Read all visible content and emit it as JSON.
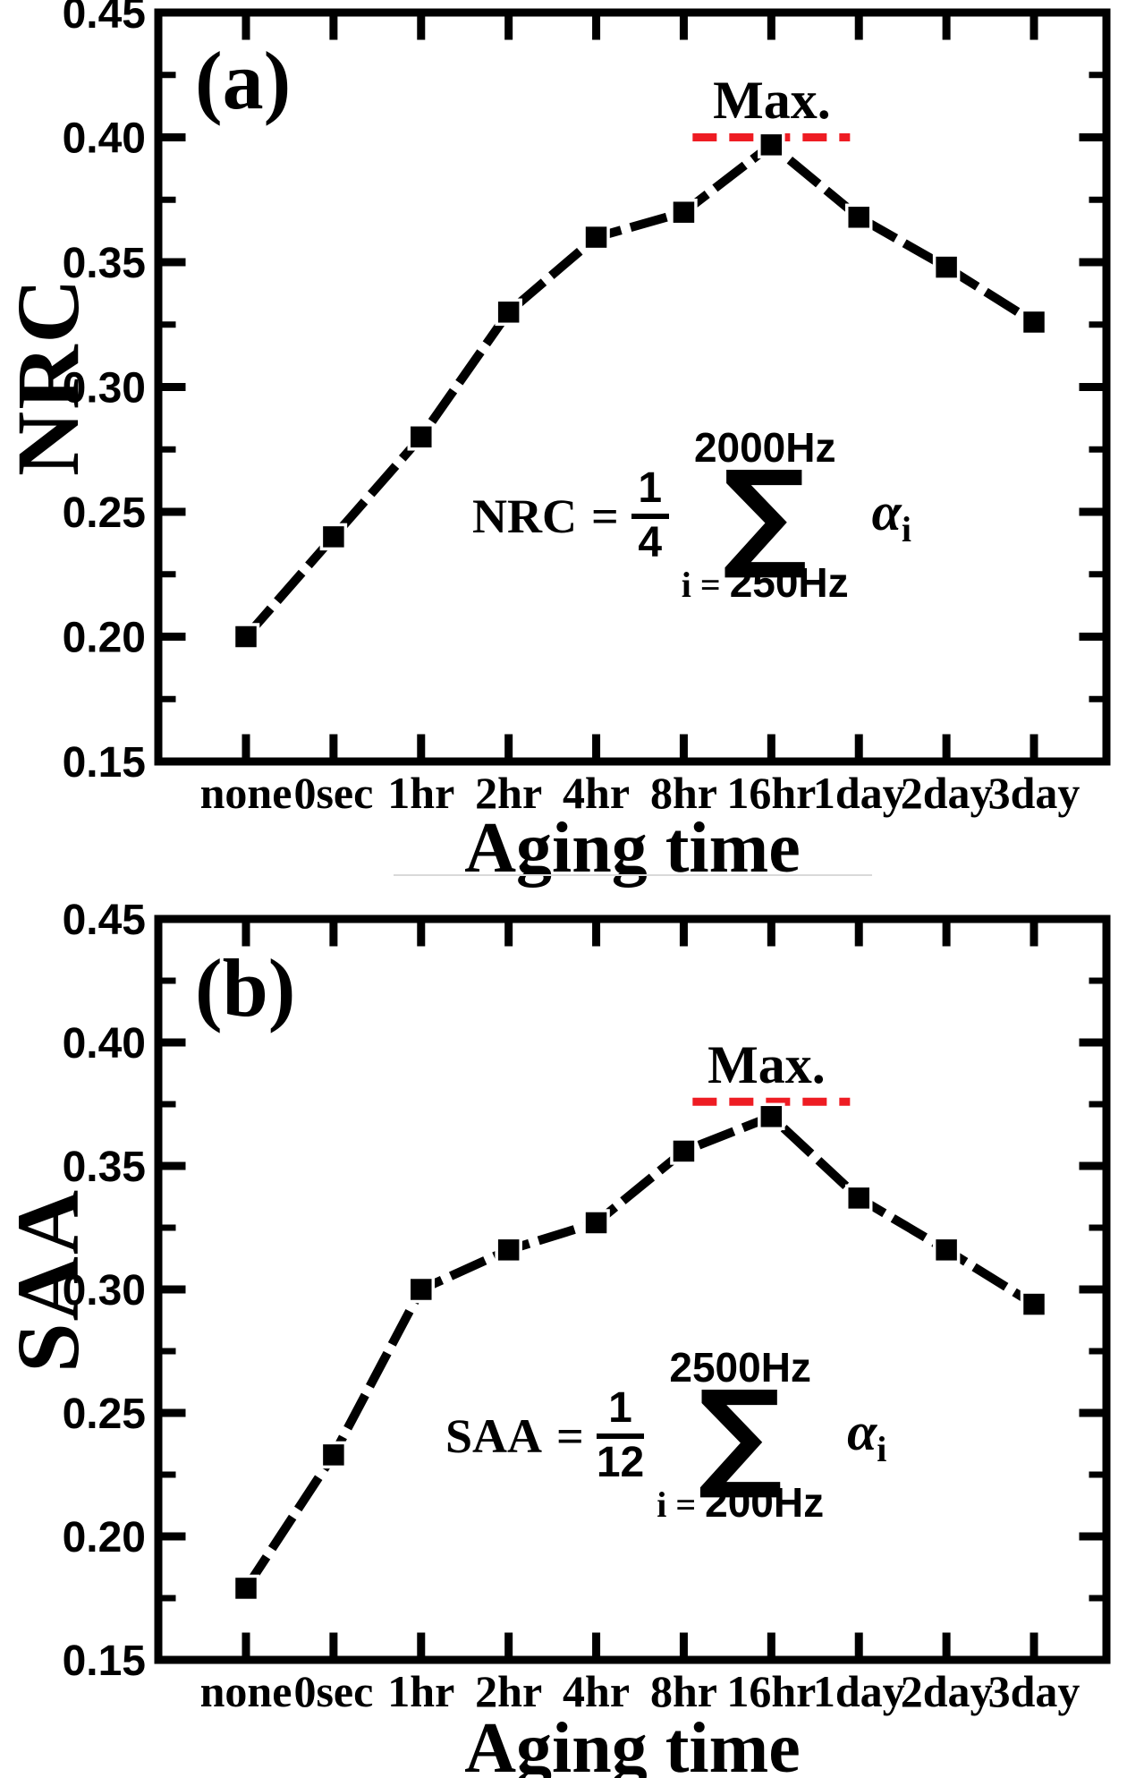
{
  "figure": {
    "background": "#ffffff",
    "ink": "#000000",
    "accent_red": "#ee1c23",
    "divider_color": "#d9d9d9"
  },
  "panels": [
    {
      "id": "a",
      "label": "(a)",
      "y_axis_title": "NRC",
      "x_axis_title": "Aging time",
      "max_annotation": "Max.",
      "formula": {
        "lhs": "NRC",
        "eq": "=",
        "frac_num": "1",
        "frac_den": "4",
        "sum_symbol": "∑",
        "sum_upper": "2000Hz",
        "sum_lower_prefix": "i =",
        "sum_lower": "250Hz",
        "term": "α",
        "term_sub": "i"
      }
    },
    {
      "id": "b",
      "label": "(b)",
      "y_axis_title": "SAA",
      "x_axis_title": "Aging time",
      "max_annotation": "Max.",
      "formula": {
        "lhs": "SAA",
        "eq": "=",
        "frac_num": "1",
        "frac_den": "12",
        "sum_symbol": "∑",
        "sum_upper": "2500Hz",
        "sum_lower_prefix": "i =",
        "sum_lower": "200Hz",
        "term": "α",
        "term_sub": "i"
      }
    }
  ],
  "chart_data": [
    {
      "type": "line",
      "panel": "a",
      "title": "(a) NRC vs Aging time",
      "xlabel": "Aging time",
      "ylabel": "NRC",
      "categories": [
        "none",
        "0sec",
        "1hr",
        "2hr",
        "4hr",
        "8hr",
        "16hr",
        "1day",
        "2day",
        "3day"
      ],
      "series": [
        {
          "name": "NRC",
          "marker": "square",
          "color": "#000000",
          "values": [
            0.2,
            0.24,
            0.28,
            0.33,
            0.36,
            0.37,
            0.397,
            0.368,
            0.348,
            0.326
          ]
        }
      ],
      "ylim": [
        0.15,
        0.45
      ],
      "ytick_major_step": 0.05,
      "ytick_minor_step": 0.025,
      "ytick_labels": [
        "0.45",
        "0.40",
        "0.35",
        "0.30",
        "0.25",
        "0.20",
        "0.15"
      ],
      "grid": false,
      "legend": false,
      "annotation": {
        "text": "Max.",
        "line_value": 0.4,
        "line_at_category": "16hr",
        "line_style": "dashed",
        "line_color": "#ee1c23"
      }
    },
    {
      "type": "line",
      "panel": "b",
      "title": "(b) SAA vs Aging time",
      "xlabel": "Aging time",
      "ylabel": "SAA",
      "categories": [
        "none",
        "0sec",
        "1hr",
        "2hr",
        "4hr",
        "8hr",
        "16hr",
        "1day",
        "2day",
        "3day"
      ],
      "series": [
        {
          "name": "SAA",
          "marker": "square",
          "color": "#000000",
          "values": [
            0.179,
            0.233,
            0.3,
            0.316,
            0.327,
            0.356,
            0.37,
            0.337,
            0.316,
            0.294
          ]
        }
      ],
      "ylim": [
        0.15,
        0.45
      ],
      "ytick_major_step": 0.05,
      "ytick_minor_step": 0.025,
      "ytick_labels": [
        "0.45",
        "0.40",
        "0.35",
        "0.30",
        "0.25",
        "0.20",
        "0.15"
      ],
      "grid": false,
      "legend": false,
      "annotation": {
        "text": "Max.",
        "line_value": 0.376,
        "line_at_category": "16hr",
        "line_style": "dashed",
        "line_color": "#ee1c23"
      }
    }
  ]
}
